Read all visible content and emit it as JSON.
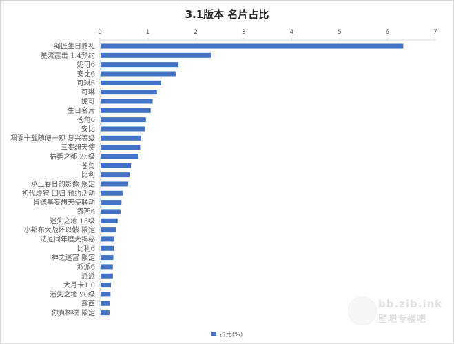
{
  "chart_data": {
    "type": "bar",
    "orientation": "horizontal",
    "title": "3.1版本 名片占比",
    "xlim": [
      0,
      7
    ],
    "xticks": [
      "0",
      "1",
      "2",
      "3",
      "4",
      "5",
      "6",
      "7"
    ],
    "axis_position": "top",
    "grid": false,
    "legend_position": "bottom",
    "series": [
      {
        "name": "占比(%)",
        "color": "#4472c4",
        "values": [
          6.33,
          2.32,
          1.64,
          1.58,
          1.28,
          1.19,
          1.1,
          1.06,
          0.96,
          0.94,
          0.86,
          0.84,
          0.8,
          0.65,
          0.62,
          0.59,
          0.48,
          0.45,
          0.43,
          0.37,
          0.33,
          0.3,
          0.29,
          0.28,
          0.27,
          0.27,
          0.23,
          0.22,
          0.21,
          0.2
        ]
      }
    ],
    "categories": [
      "绳匠生日赠礼",
      "星流霆击 1.4预约",
      "妮可6",
      "安比6",
      "可琳6",
      "可琳",
      "妮可",
      "生日名片",
      "苍角6",
      "安比",
      "凋零十载随便一观 复兴等级",
      "三妄想天使",
      "枯萎之都 25级",
      "苍角",
      "比利",
      "承上春日的影像 限定",
      "初代虚狩 回归 预约活动",
      "肯德基妄想天使联动",
      "露西6",
      "迷失之地 15级",
      "小邦布大战坏以骸 限定",
      "法厄同年度大揭秘",
      "比利6",
      "神之迷宫 限定",
      "派派6",
      "派派",
      "大月卡1.0",
      "迷失之地 90级",
      "露西",
      "你真棒噗 限定"
    ]
  },
  "watermark": {
    "text": "bb.zib.ink",
    "subtext": "壁吧专楼吧"
  }
}
